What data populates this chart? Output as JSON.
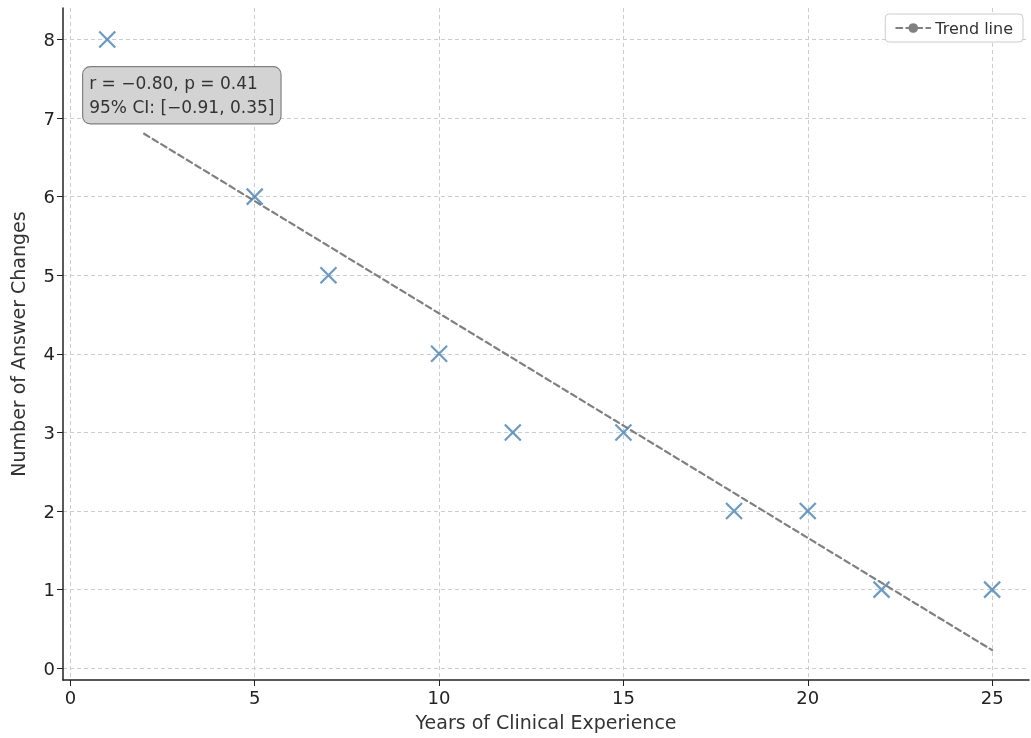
{
  "chart_data": {
    "type": "scatter",
    "xlabel": "Years of Clinical Experience",
    "ylabel": "Number of Answer Changes",
    "annotations": [
      "r = −0.80, p = 0.41\n95% CI: [−0.91, 0.35]"
    ],
    "x": [
      1,
      5,
      7,
      10,
      12,
      15,
      18,
      20,
      22,
      25
    ],
    "series": [
      {
        "color": "#4682b4",
        "values": [
          8,
          6,
          5,
          4,
          3,
          3,
          2,
          2,
          1,
          1
        ],
        "marker": "cross"
      },
      {
        "type": "line",
        "name": "Trend line",
        "color": "#808080",
        "x": [
          2,
          25
        ],
        "values": [
          6.8,
          0.23
        ],
        "line_style": "dashed",
        "marker": "none"
      }
    ],
    "xlim": [
      -0.2,
      26
    ],
    "xticks": [
      0,
      5,
      10,
      15,
      20,
      25
    ],
    "ylim": [
      -0.15,
      8.4
    ],
    "yticks": [
      0,
      1,
      2,
      3,
      4,
      5,
      6,
      7,
      8
    ],
    "grid": true,
    "legend": "top right"
  }
}
